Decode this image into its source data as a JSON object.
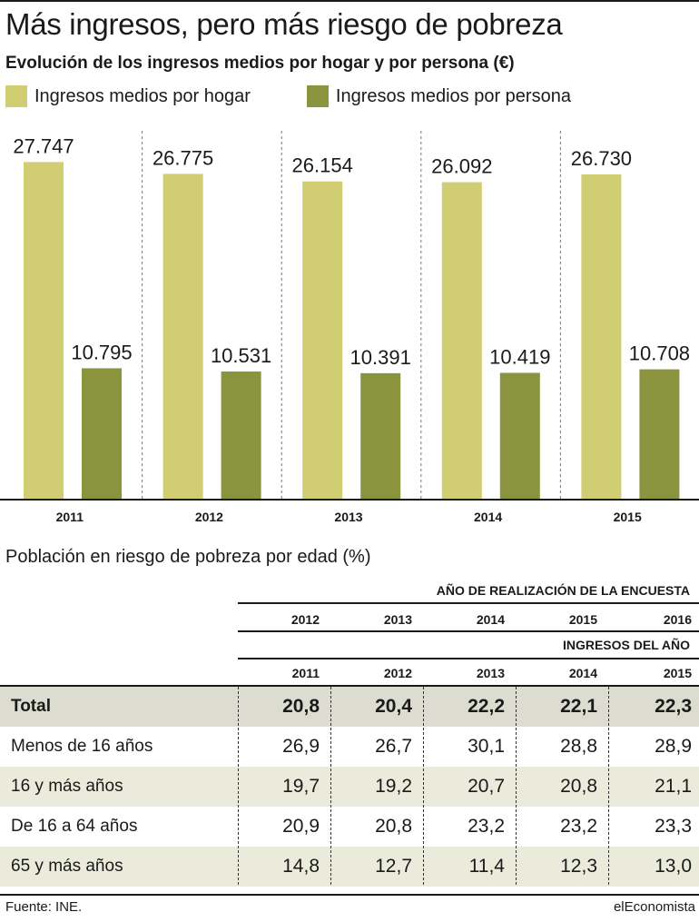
{
  "title": "Más ingresos, pero más riesgo de pobreza",
  "subtitle": "Evolución de los ingresos medios por hogar y por persona (€)",
  "colors": {
    "hogar": "#d1cd73",
    "persona": "#8a933d",
    "total_row": "#dcdcd0",
    "shaded_row": "#ebebdc"
  },
  "chart_data": {
    "type": "bar",
    "categories": [
      "2011",
      "2012",
      "2013",
      "2014",
      "2015"
    ],
    "series": [
      {
        "name": "Ingresos medios por hogar",
        "values": [
          27747,
          26775,
          26154,
          26092,
          26730
        ],
        "labels": [
          "27.747",
          "26.775",
          "26.154",
          "26.092",
          "26.730"
        ]
      },
      {
        "name": "Ingresos medios por persona",
        "values": [
          10795,
          10531,
          10391,
          10419,
          10708
        ],
        "labels": [
          "10.795",
          "10.531",
          "10.391",
          "10.419",
          "10.708"
        ]
      }
    ],
    "ylim": [
      0,
      28000
    ],
    "legend": "top-left",
    "grid": false
  },
  "table": {
    "title": "Población en riesgo de pobreza por edad (%)",
    "survey_header": "AÑO DE REALIZACIÓN DE LA ENCUESTA",
    "survey_years": [
      "2012",
      "2013",
      "2014",
      "2015",
      "2016"
    ],
    "income_header": "INGRESOS DEL AÑO",
    "income_years": [
      "2011",
      "2012",
      "2013",
      "2014",
      "2015"
    ],
    "rows": [
      {
        "label": "Total",
        "values": [
          "20,8",
          "20,4",
          "22,2",
          "22,1",
          "22,3"
        ]
      },
      {
        "label": "Menos de 16 años",
        "values": [
          "26,9",
          "26,7",
          "30,1",
          "28,8",
          "28,9"
        ]
      },
      {
        "label": "16 y más años",
        "values": [
          "19,7",
          "19,2",
          "20,7",
          "20,8",
          "21,1"
        ]
      },
      {
        "label": "De 16 a 64 años",
        "values": [
          "20,9",
          "20,8",
          "23,2",
          "23,2",
          "23,3"
        ]
      },
      {
        "label": "65 y más años",
        "values": [
          "14,8",
          "12,7",
          "11,4",
          "12,3",
          "13,0"
        ]
      }
    ]
  },
  "footer": {
    "source": "Fuente: INE.",
    "brand": "elEconomista"
  }
}
